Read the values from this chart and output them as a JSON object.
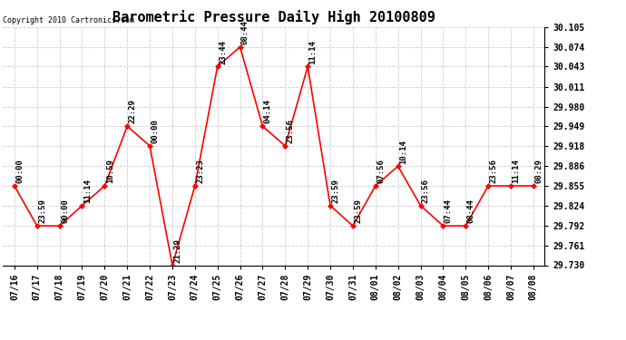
{
  "title": "Barometric Pressure Daily High 20100809",
  "copyright": "Copyright 2010 Cartronics.com",
  "x_labels": [
    "07/16",
    "07/17",
    "07/18",
    "07/19",
    "07/20",
    "07/21",
    "07/22",
    "07/23",
    "07/24",
    "07/25",
    "07/26",
    "07/27",
    "07/28",
    "07/29",
    "07/30",
    "07/31",
    "08/01",
    "08/02",
    "08/03",
    "08/04",
    "08/05",
    "08/06",
    "08/07",
    "08/08"
  ],
  "y_values": [
    29.855,
    29.792,
    29.792,
    29.824,
    29.855,
    29.949,
    29.918,
    29.73,
    29.855,
    30.043,
    30.074,
    29.949,
    29.918,
    30.043,
    29.824,
    29.792,
    29.855,
    29.886,
    29.824,
    29.792,
    29.792,
    29.855,
    29.855,
    29.855
  ],
  "point_labels": [
    "00:00",
    "23:59",
    "00:00",
    "11:14",
    "10:59",
    "22:29",
    "00:00",
    "21:29",
    "23:23",
    "23:44",
    "08:44",
    "04:14",
    "23:56",
    "11:14",
    "23:59",
    "23:59",
    "07:56",
    "10:14",
    "23:56",
    "07:44",
    "08:44",
    "23:56",
    "11:14",
    "08:29"
  ],
  "ylim_min": 29.73,
  "ylim_max": 30.105,
  "yticks": [
    29.73,
    29.761,
    29.792,
    29.824,
    29.855,
    29.886,
    29.918,
    29.949,
    29.98,
    30.011,
    30.043,
    30.074,
    30.105
  ],
  "line_color": "#FF0000",
  "marker_color": "#FF0000",
  "grid_color": "#CCCCCC",
  "bg_color": "#FFFFFF",
  "title_fontsize": 11,
  "axis_fontsize": 7,
  "label_fontsize": 6.5
}
